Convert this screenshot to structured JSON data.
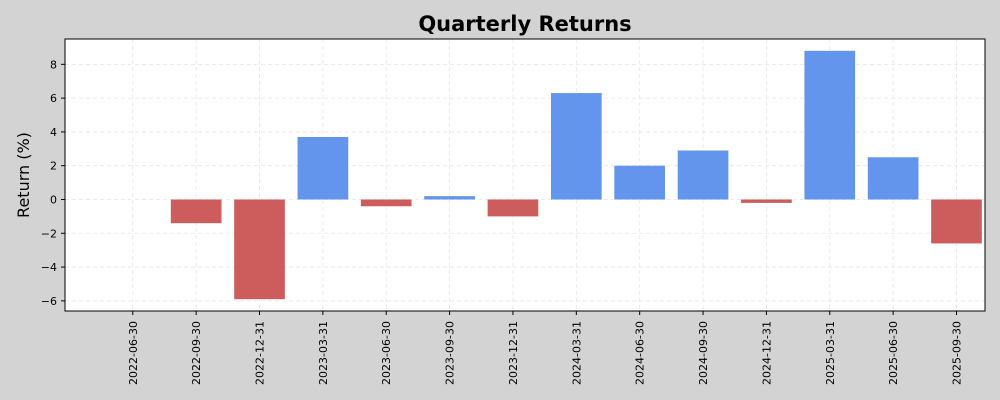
{
  "chart_data": {
    "type": "bar",
    "title": "Quarterly Returns",
    "xlabel": "",
    "ylabel": "Return (%)",
    "categories": [
      "2022-06-30",
      "2022-09-30",
      "2022-12-31",
      "2023-03-31",
      "2023-06-30",
      "2023-09-30",
      "2023-12-31",
      "2024-03-31",
      "2024-06-30",
      "2024-09-30",
      "2024-12-31",
      "2025-03-31",
      "2025-06-30",
      "2025-09-30"
    ],
    "values": [
      0,
      -1.4,
      -5.9,
      3.7,
      -0.4,
      0.2,
      -1.0,
      6.3,
      2.0,
      2.9,
      -0.2,
      8.8,
      2.5,
      -2.6
    ],
    "ylim": [
      -6.6,
      9.5
    ],
    "yticks": [
      -6,
      -4,
      -2,
      0,
      2,
      4,
      6,
      8
    ],
    "ytick_labels": [
      "−6",
      "−4",
      "−2",
      "0",
      "2",
      "4",
      "6",
      "8"
    ],
    "grid": true,
    "colors": {
      "positive": "#6495ed",
      "negative": "#cd5c5c",
      "background": "#d3d3d3",
      "plot_area": "#ffffff"
    }
  }
}
